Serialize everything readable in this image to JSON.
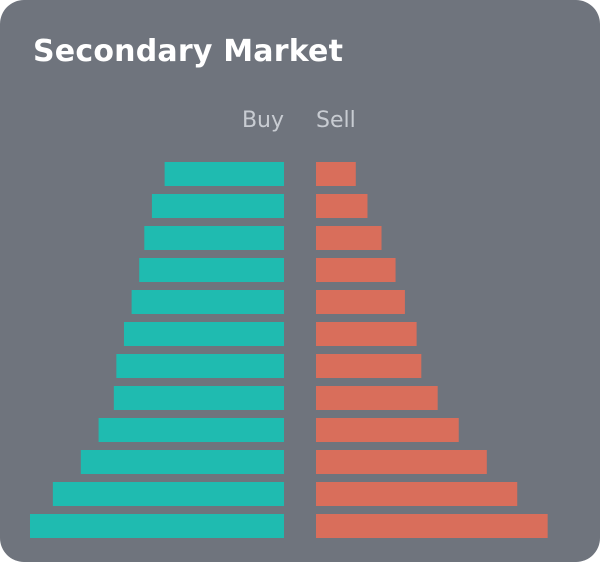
{
  "title": "Secondary Market",
  "colors": {
    "background": "#6f747d",
    "buy": "#1fbbb0",
    "sell": "#d96e5b",
    "label": "#c8ccd2",
    "title": "#ffffff"
  },
  "chart_data": {
    "type": "bar",
    "orientation": "horizontal",
    "layout": "back-to-back",
    "grid": false,
    "legend": "none",
    "xlim": [
      0,
      100
    ],
    "series": [
      {
        "name": "Buy",
        "values": [
          47,
          52,
          55,
          57,
          60,
          63,
          66,
          67,
          73,
          80,
          91,
          100
        ]
      },
      {
        "name": "Sell",
        "values": [
          17,
          22,
          28,
          34,
          38,
          43,
          45,
          52,
          61,
          73,
          86,
          99
        ]
      }
    ]
  }
}
